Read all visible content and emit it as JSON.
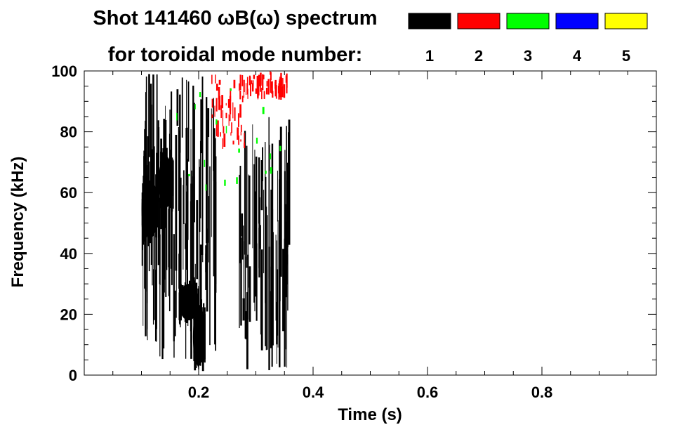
{
  "chart_data": {
    "type": "heatmap",
    "title_line1": "Shot 141460 ωB(ω) spectrum",
    "title_line2": "for toroidal mode number:",
    "legend": [
      {
        "label": "1",
        "color": "#000000"
      },
      {
        "label": "2",
        "color": "#ff0000"
      },
      {
        "label": "3",
        "color": "#00ff00"
      },
      {
        "label": "4",
        "color": "#0000ff"
      },
      {
        "label": "5",
        "color": "#ffff00"
      }
    ],
    "xlabel": "Time (s)",
    "ylabel": "Frequency (kHz)",
    "xlim": [
      0.0,
      1.0
    ],
    "ylim": [
      0,
      100
    ],
    "x_ticks": [
      {
        "value": 0.2,
        "label": "0.2"
      },
      {
        "value": 0.4,
        "label": "0.4"
      },
      {
        "value": 0.6,
        "label": "0.6"
      },
      {
        "value": 0.8,
        "label": "0.8"
      }
    ],
    "y_ticks": [
      {
        "value": 0,
        "label": "0"
      },
      {
        "value": 20,
        "label": "20"
      },
      {
        "value": 40,
        "label": "40"
      },
      {
        "value": 60,
        "label": "60"
      },
      {
        "value": 80,
        "label": "80"
      },
      {
        "value": 100,
        "label": "100"
      }
    ],
    "x_minor_step": 0.05,
    "y_minor_step": 5,
    "regions": [
      {
        "mode": "1",
        "t": [
          0.1,
          0.13
        ],
        "f": [
          45,
          64
        ],
        "density": "solid"
      },
      {
        "mode": "1",
        "t": [
          0.13,
          0.155
        ],
        "f": [
          55,
          72
        ],
        "density": "solid"
      },
      {
        "mode": "1",
        "t": [
          0.165,
          0.2
        ],
        "f": [
          18,
          30
        ],
        "density": "solid"
      },
      {
        "mode": "1",
        "t": [
          0.19,
          0.21
        ],
        "f": [
          3,
          22
        ],
        "density": "solid"
      },
      {
        "mode": "1",
        "t": [
          0.1,
          0.23
        ],
        "f": [
          5,
          100
        ],
        "density": "streaks"
      },
      {
        "mode": "1",
        "t": [
          0.27,
          0.36
        ],
        "f": [
          1,
          86
        ],
        "density": "streaks"
      },
      {
        "mode": "2",
        "t": [
          0.22,
          0.28
        ],
        "f": [
          74,
          100
        ],
        "density": "sparse"
      },
      {
        "mode": "2",
        "t": [
          0.27,
          0.355
        ],
        "f": [
          90,
          100
        ],
        "density": "sparse"
      },
      {
        "mode": "3",
        "t": [
          0.15,
          0.36
        ],
        "f": [
          60,
          95
        ],
        "density": "rare"
      }
    ]
  }
}
